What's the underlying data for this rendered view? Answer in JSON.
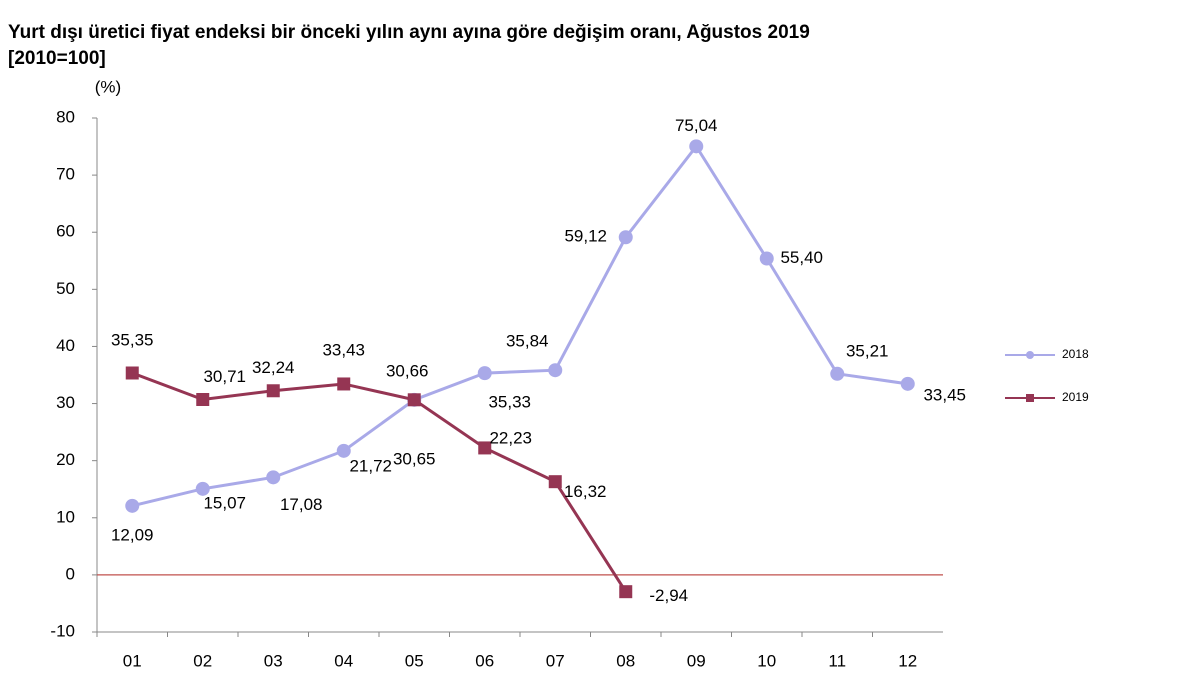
{
  "chart_data": {
    "type": "line",
    "title": "Yurt dışı üretici fiyat endeksi bir önceki yılın aynı ayına göre değişim oranı, Ağustos 2019",
    "subtitle": "[2010=100]",
    "y_label": "(%)",
    "categories": [
      "01",
      "02",
      "03",
      "04",
      "05",
      "06",
      "07",
      "08",
      "09",
      "10",
      "11",
      "12"
    ],
    "series": [
      {
        "name": "2018",
        "color": "#a9a9e8",
        "marker": "circle",
        "values": [
          12.09,
          15.07,
          17.08,
          21.72,
          30.65,
          35.33,
          35.84,
          59.12,
          75.04,
          55.4,
          35.21,
          33.45
        ],
        "value_labels": [
          "12,09",
          "15,07",
          "17,08",
          "21,72",
          "30,65",
          "35,33",
          "35,84",
          "59,12",
          "75,04",
          "55,40",
          "35,21",
          "33,45"
        ]
      },
      {
        "name": "2019",
        "color": "#953553",
        "marker": "square",
        "values": [
          35.35,
          30.71,
          32.24,
          33.43,
          30.66,
          22.23,
          16.32,
          -2.94,
          null,
          null,
          null,
          null
        ],
        "value_labels": [
          "35,35",
          "30,71",
          "32,24",
          "33,43",
          "30,66",
          "22,23",
          "16,32",
          "-2,94",
          null,
          null,
          null,
          null
        ]
      }
    ],
    "ylim": [
      -10,
      80
    ],
    "yticks": [
      -10,
      0,
      10,
      20,
      30,
      40,
      50,
      60,
      70,
      80
    ],
    "zero_line_color": "#c0504d",
    "legend": "right"
  }
}
